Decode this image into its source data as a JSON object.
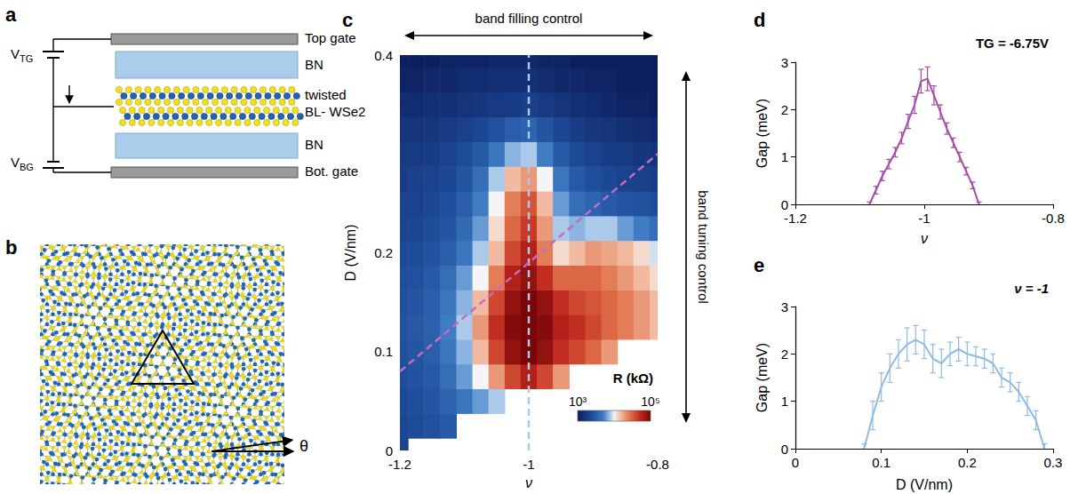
{
  "diagram": {
    "a": {
      "label": "a",
      "voltages": [
        {
          "main": "V",
          "sub": "TG"
        },
        {
          "main": "V",
          "sub": "BG"
        }
      ],
      "labels": [
        "Top gate",
        "BN",
        "twisted",
        "BL- WSe2",
        "BN",
        "Bot. gate"
      ]
    },
    "b": {
      "label": "b",
      "angle": "θ"
    }
  },
  "chart_data": [
    {
      "panel_label": "c",
      "type": "heatmap",
      "x_label": "ν",
      "y_label": "D (V/nm)",
      "x": [
        -1.2,
        -1.175,
        -1.15,
        -1.125,
        -1.1,
        -1.075,
        -1.05,
        -1.025,
        -1,
        -0.975,
        -0.95,
        -0.925,
        -0.9,
        -0.875,
        -0.85,
        -0.825,
        -0.8
      ],
      "y": [
        0,
        0.025,
        0.05,
        0.075,
        0.1,
        0.125,
        0.15,
        0.175,
        0.2,
        0.225,
        0.25,
        0.275,
        0.3,
        0.325,
        0.35,
        0.375,
        0.4
      ],
      "cells": [
        [
          2000,
          null,
          null,
          null,
          null,
          null,
          null,
          null,
          null,
          null,
          null,
          null,
          null,
          null,
          null,
          null,
          null
        ],
        [
          2200,
          2400,
          2600,
          3000,
          null,
          null,
          null,
          null,
          null,
          null,
          null,
          null,
          null,
          null,
          null,
          null,
          null
        ],
        [
          2300,
          2500,
          2800,
          3500,
          4500,
          6000,
          8000,
          null,
          null,
          null,
          null,
          null,
          null,
          null,
          null,
          null,
          null
        ],
        [
          2500,
          2700,
          3000,
          4000,
          6000,
          10000,
          20000,
          40000,
          60000,
          40000,
          20000,
          null,
          null,
          null,
          null,
          null,
          null
        ],
        [
          2600,
          2800,
          3200,
          4500,
          7000,
          15000,
          40000,
          80000,
          100000,
          80000,
          50000,
          40000,
          30000,
          20000,
          null,
          null,
          null
        ],
        [
          2700,
          2900,
          3300,
          5000,
          8000,
          20000,
          50000,
          90000,
          100000,
          90000,
          60000,
          50000,
          40000,
          30000,
          25000,
          20000,
          15000
        ],
        [
          2600,
          2800,
          3200,
          4500,
          7000,
          15000,
          40000,
          80000,
          100000,
          80000,
          50000,
          40000,
          35000,
          30000,
          25000,
          20000,
          15000
        ],
        [
          2500,
          2600,
          3000,
          4000,
          6000,
          10000,
          25000,
          60000,
          80000,
          50000,
          30000,
          30000,
          30000,
          25000,
          20000,
          15000,
          12000
        ],
        [
          2300,
          2400,
          2700,
          3200,
          4500,
          8000,
          15000,
          40000,
          60000,
          25000,
          12000,
          15000,
          20000,
          18000,
          15000,
          12000,
          9000
        ],
        [
          2100,
          2200,
          2400,
          2800,
          3800,
          6000,
          12000,
          30000,
          45000,
          20000,
          8000,
          7000,
          8000,
          8000,
          6000,
          5000,
          4000
        ],
        [
          2000,
          2000,
          2200,
          2500,
          3200,
          5000,
          10000,
          25000,
          35000,
          15000,
          6000,
          4000,
          3500,
          3000,
          2800,
          2600,
          2400
        ],
        [
          1800,
          1900,
          2000,
          2200,
          2800,
          4000,
          8000,
          15000,
          20000,
          10000,
          4500,
          3000,
          2500,
          2200,
          2000,
          1900,
          1800
        ],
        [
          1700,
          1700,
          1800,
          2000,
          2400,
          3000,
          4500,
          7000,
          8000,
          5000,
          3000,
          2300,
          2000,
          1800,
          1700,
          1600,
          1500
        ],
        [
          1500,
          1500,
          1600,
          1700,
          1900,
          2200,
          2600,
          3200,
          3500,
          2800,
          2200,
          1800,
          1600,
          1500,
          1400,
          1300,
          1200
        ],
        [
          1300,
          1300,
          1400,
          1400,
          1500,
          1600,
          1700,
          1800,
          1900,
          1700,
          1500,
          1400,
          1300,
          1200,
          1100,
          1100,
          1000
        ],
        [
          1100,
          1100,
          1200,
          1200,
          1300,
          1300,
          1400,
          1400,
          1400,
          1300,
          1200,
          1200,
          1100,
          1100,
          1000,
          1000,
          1000
        ],
        [
          1000,
          1000,
          1000,
          1100,
          1100,
          1100,
          1200,
          1200,
          1200,
          1100,
          1100,
          1000,
          1000,
          1000,
          1000,
          1000,
          1000
        ]
      ],
      "xlim": [
        -1.2,
        -0.8
      ],
      "xticks": [
        -1.2,
        -1,
        -0.8
      ],
      "ylim": [
        0,
        0.4
      ],
      "yticks": [
        0,
        0.1,
        0.2,
        0.4
      ],
      "grid": false,
      "colorbar": {
        "label": "R (kΩ)",
        "range": [
          1000,
          100000
        ],
        "log": true,
        "ticks": [
          {
            "value": 1000,
            "label": "10³"
          },
          {
            "value": 100000,
            "label": "10⁵"
          }
        ]
      },
      "lines": [
        {
          "x": [
            -1,
            -1
          ],
          "y": [
            0,
            0.4
          ],
          "color": "#a9c9ea",
          "line_style": "dashed"
        },
        {
          "x": [
            -1.2,
            -0.8
          ],
          "y": [
            0.08,
            0.3
          ],
          "color": "#c46cc0",
          "line_style": "dashed"
        }
      ],
      "annotations": [
        "band filling control",
        "band tuning control"
      ]
    },
    {
      "panel_label": "d",
      "type": "line",
      "title": "TG = -6.75V",
      "x_label": "ν",
      "y_label": "Gap (meV)",
      "x": [
        -1.085,
        -1.075,
        -1.065,
        -1.055,
        -1.045,
        -1.035,
        -1.025,
        -1.015,
        -1.005,
        -0.995,
        -0.985,
        -0.975,
        -0.965,
        -0.955,
        -0.945,
        -0.935,
        -0.925,
        -0.915
      ],
      "values": [
        0,
        0.3,
        0.6,
        0.85,
        1.1,
        1.4,
        1.75,
        2.1,
        2.6,
        2.65,
        2.3,
        1.95,
        1.6,
        1.3,
        1.0,
        0.7,
        0.4,
        0
      ],
      "errors": [
        0.05,
        0.08,
        0.1,
        0.1,
        0.1,
        0.12,
        0.15,
        0.18,
        0.25,
        0.25,
        0.2,
        0.15,
        0.12,
        0.1,
        0.1,
        0.08,
        0.07,
        0.05
      ],
      "color": "#a64ca6",
      "xlim": [
        -1.2,
        -0.8
      ],
      "xticks": [
        -1.2,
        -1,
        -0.8
      ],
      "ylim": [
        0,
        3
      ],
      "yticks": [
        0,
        1,
        2,
        3
      ],
      "grid": false
    },
    {
      "panel_label": "e",
      "type": "line",
      "title": "ν = -1",
      "x_label": "D (V/nm)",
      "y_label": "Gap (meV)",
      "x": [
        0.08,
        0.09,
        0.1,
        0.11,
        0.12,
        0.13,
        0.14,
        0.15,
        0.16,
        0.17,
        0.18,
        0.19,
        0.2,
        0.21,
        0.22,
        0.23,
        0.24,
        0.25,
        0.26,
        0.27,
        0.28,
        0.29
      ],
      "values": [
        0,
        0.7,
        1.3,
        1.7,
        2.0,
        2.2,
        2.3,
        2.2,
        1.9,
        1.8,
        2.0,
        2.1,
        2.0,
        1.95,
        1.9,
        1.8,
        1.5,
        1.4,
        1.2,
        0.9,
        0.6,
        0
      ],
      "errors": [
        0.1,
        0.3,
        0.3,
        0.3,
        0.3,
        0.35,
        0.3,
        0.3,
        0.3,
        0.3,
        0.25,
        0.25,
        0.25,
        0.2,
        0.2,
        0.2,
        0.2,
        0.2,
        0.2,
        0.2,
        0.2,
        0.1
      ],
      "color": "#8fbbe3",
      "xlim": [
        0,
        0.3
      ],
      "xticks": [
        0,
        0.1,
        0.2,
        0.3
      ],
      "ylim": [
        0,
        3
      ],
      "yticks": [
        0,
        1,
        2,
        3
      ],
      "grid": false
    }
  ]
}
